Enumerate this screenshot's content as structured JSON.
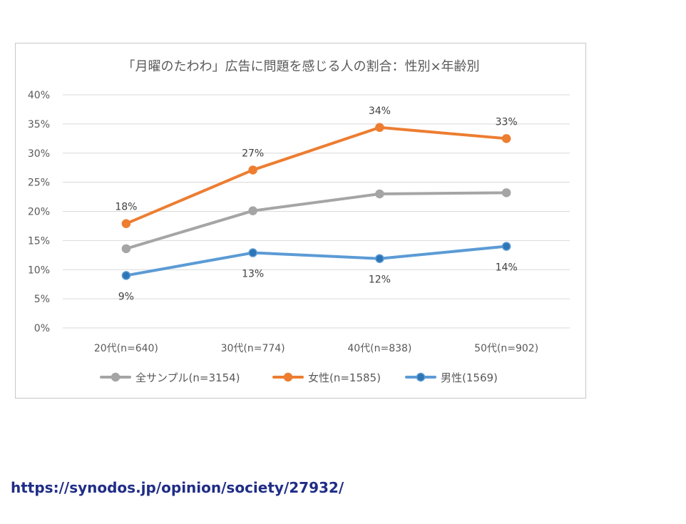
{
  "chart_data": {
    "type": "line",
    "title": "「月曜のたわわ」広告に問題を感じる人の割合：性別×年齢別",
    "xlabel": "",
    "ylabel": "",
    "categories": [
      "20代(n=640)",
      "30代(n=774)",
      "40代(n=838)",
      "50代(n=902)"
    ],
    "ylim": [
      0,
      40
    ],
    "yticks": [
      0,
      5,
      10,
      15,
      20,
      25,
      30,
      35,
      40
    ],
    "ytick_labels": [
      "0%",
      "5%",
      "10%",
      "15%",
      "20%",
      "25%",
      "30%",
      "35%",
      "40%"
    ],
    "grid": true,
    "legend_position": "bottom",
    "series": [
      {
        "name": "全サンプル(n=3154)",
        "color": "#a5a5a5",
        "values": [
          13.6,
          20.1,
          23.0,
          23.2
        ],
        "labels": []
      },
      {
        "name": "女性(n=1585)",
        "color": "#ed7d31",
        "values": [
          17.9,
          27.1,
          34.4,
          32.5
        ],
        "labels": [
          "18%",
          "27%",
          "34%",
          "33%"
        ],
        "label_placement": "above"
      },
      {
        "name": "男性(1569)",
        "color": "#5b9bd5",
        "marker_color": "#2e75b6",
        "values": [
          9.0,
          12.9,
          11.9,
          14.0
        ],
        "labels": [
          "9%",
          "13%",
          "12%",
          "14%"
        ],
        "label_placement": "below"
      }
    ]
  },
  "source": {
    "url_text": "https://synodos.jp/opinion/society/27932/"
  }
}
